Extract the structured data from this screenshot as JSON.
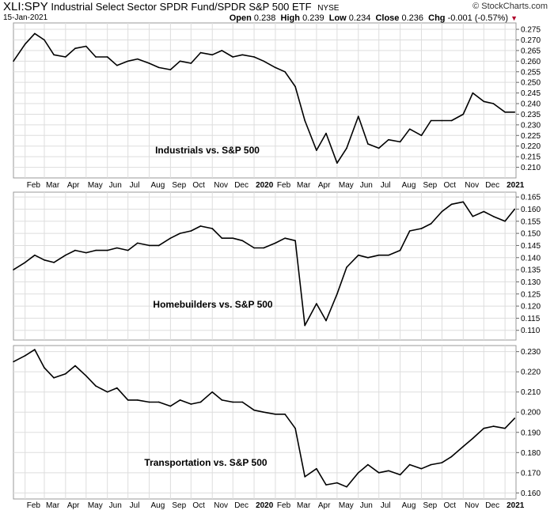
{
  "header": {
    "symbol": "XLI:SPY",
    "description": "Industrial Select Sector SPDR Fund/SPDR S&P 500 ETF",
    "exchange": "NYSE",
    "date": "15-Jan-2021",
    "brand": "© StockCharts.com",
    "open_label": "Open",
    "open": "0.238",
    "high_label": "High",
    "high": "0.239",
    "low_label": "Low",
    "low": "0.234",
    "close_label": "Close",
    "close": "0.236",
    "chg_label": "Chg",
    "chg": "-0.001 (-0.57%)",
    "down_arrow": "▼",
    "down_color": "#b0002a"
  },
  "x_axis": {
    "labels": [
      "Feb",
      "Mar",
      "Apr",
      "May",
      "Jun",
      "Jul",
      "Aug",
      "Sep",
      "Oct",
      "Nov",
      "Dec",
      "2020",
      "Feb",
      "Mar",
      "Apr",
      "May",
      "Jun",
      "Jul",
      "Aug",
      "Sep",
      "Oct",
      "Nov",
      "Dec",
      "2021"
    ],
    "bold_labels": [
      "2020",
      "2021"
    ]
  },
  "chart_data": [
    {
      "type": "line",
      "annotation": "Industrials vs. S&P 500",
      "ylim": [
        0.205,
        0.278
      ],
      "yticks": [
        "0.275",
        "0.270",
        "0.265",
        "0.260",
        "0.255",
        "0.250",
        "0.245",
        "0.240",
        "0.235",
        "0.230",
        "0.225",
        "0.220",
        "0.215",
        "0.210"
      ],
      "x": [
        "2019-01-15",
        "2019-02-01",
        "2019-02-15",
        "2019-03-01",
        "2019-03-15",
        "2019-04-01",
        "2019-04-15",
        "2019-05-01",
        "2019-05-15",
        "2019-06-01",
        "2019-06-15",
        "2019-07-01",
        "2019-07-15",
        "2019-08-01",
        "2019-08-15",
        "2019-09-01",
        "2019-09-15",
        "2019-10-01",
        "2019-10-15",
        "2019-11-01",
        "2019-11-15",
        "2019-12-01",
        "2019-12-15",
        "2020-01-01",
        "2020-01-15",
        "2020-02-01",
        "2020-02-15",
        "2020-03-01",
        "2020-03-15",
        "2020-04-01",
        "2020-04-15",
        "2020-05-01",
        "2020-05-15",
        "2020-06-01",
        "2020-06-15",
        "2020-07-01",
        "2020-07-15",
        "2020-08-01",
        "2020-08-15",
        "2020-09-01",
        "2020-09-15",
        "2020-10-01",
        "2020-10-15",
        "2020-11-01",
        "2020-11-15",
        "2020-12-01",
        "2020-12-15",
        "2021-01-01",
        "2021-01-15"
      ],
      "values": [
        0.26,
        0.268,
        0.273,
        0.27,
        0.263,
        0.262,
        0.266,
        0.267,
        0.262,
        0.262,
        0.258,
        0.26,
        0.261,
        0.259,
        0.257,
        0.256,
        0.26,
        0.259,
        0.264,
        0.263,
        0.265,
        0.262,
        0.263,
        0.262,
        0.26,
        0.257,
        0.255,
        0.248,
        0.232,
        0.218,
        0.226,
        0.212,
        0.219,
        0.234,
        0.221,
        0.219,
        0.223,
        0.222,
        0.228,
        0.225,
        0.232,
        0.232,
        0.232,
        0.235,
        0.245,
        0.241,
        0.24,
        0.236,
        0.236
      ]
    },
    {
      "type": "line",
      "annotation": "Homebuilders vs. S&P 500",
      "ylim": [
        0.106,
        0.167
      ],
      "yticks": [
        "0.165",
        "0.160",
        "0.155",
        "0.150",
        "0.145",
        "0.140",
        "0.135",
        "0.130",
        "0.125",
        "0.120",
        "0.115",
        "0.110"
      ],
      "x": [
        "2019-01-15",
        "2019-02-01",
        "2019-02-15",
        "2019-03-01",
        "2019-03-15",
        "2019-04-01",
        "2019-04-15",
        "2019-05-01",
        "2019-05-15",
        "2019-06-01",
        "2019-06-15",
        "2019-07-01",
        "2019-07-15",
        "2019-08-01",
        "2019-08-15",
        "2019-09-01",
        "2019-09-15",
        "2019-10-01",
        "2019-10-15",
        "2019-11-01",
        "2019-11-15",
        "2019-12-01",
        "2019-12-15",
        "2020-01-01",
        "2020-01-15",
        "2020-02-01",
        "2020-02-15",
        "2020-03-01",
        "2020-03-15",
        "2020-04-01",
        "2020-04-15",
        "2020-05-01",
        "2020-05-15",
        "2020-06-01",
        "2020-06-15",
        "2020-07-01",
        "2020-07-15",
        "2020-08-01",
        "2020-08-15",
        "2020-09-01",
        "2020-09-15",
        "2020-10-01",
        "2020-10-15",
        "2020-11-01",
        "2020-11-15",
        "2020-12-01",
        "2020-12-15",
        "2021-01-01",
        "2021-01-15"
      ],
      "values": [
        0.135,
        0.138,
        0.141,
        0.139,
        0.138,
        0.141,
        0.143,
        0.142,
        0.143,
        0.143,
        0.144,
        0.143,
        0.146,
        0.145,
        0.145,
        0.148,
        0.15,
        0.151,
        0.153,
        0.152,
        0.148,
        0.148,
        0.147,
        0.144,
        0.144,
        0.146,
        0.148,
        0.147,
        0.112,
        0.121,
        0.114,
        0.125,
        0.136,
        0.141,
        0.14,
        0.141,
        0.141,
        0.143,
        0.151,
        0.152,
        0.154,
        0.159,
        0.162,
        0.163,
        0.157,
        0.159,
        0.157,
        0.155,
        0.16
      ]
    },
    {
      "type": "line",
      "annotation": "Transportation vs. S&P 500",
      "ylim": [
        0.157,
        0.233
      ],
      "yticks": [
        "0.230",
        "0.220",
        "0.210",
        "0.200",
        "0.190",
        "0.180",
        "0.170",
        "0.160"
      ],
      "x": [
        "2019-01-15",
        "2019-02-01",
        "2019-02-15",
        "2019-03-01",
        "2019-03-15",
        "2019-04-01",
        "2019-04-15",
        "2019-05-01",
        "2019-05-15",
        "2019-06-01",
        "2019-06-15",
        "2019-07-01",
        "2019-07-15",
        "2019-08-01",
        "2019-08-15",
        "2019-09-01",
        "2019-09-15",
        "2019-10-01",
        "2019-10-15",
        "2019-11-01",
        "2019-11-15",
        "2019-12-01",
        "2019-12-15",
        "2020-01-01",
        "2020-01-15",
        "2020-02-01",
        "2020-02-15",
        "2020-03-01",
        "2020-03-15",
        "2020-04-01",
        "2020-04-15",
        "2020-05-01",
        "2020-05-15",
        "2020-06-01",
        "2020-06-15",
        "2020-07-01",
        "2020-07-15",
        "2020-08-01",
        "2020-08-15",
        "2020-09-01",
        "2020-09-15",
        "2020-10-01",
        "2020-10-15",
        "2020-11-01",
        "2020-11-15",
        "2020-12-01",
        "2020-12-15",
        "2021-01-01",
        "2021-01-15"
      ],
      "values": [
        0.225,
        0.228,
        0.231,
        0.222,
        0.217,
        0.219,
        0.223,
        0.218,
        0.213,
        0.21,
        0.212,
        0.206,
        0.206,
        0.205,
        0.205,
        0.203,
        0.206,
        0.204,
        0.205,
        0.21,
        0.206,
        0.205,
        0.205,
        0.201,
        0.2,
        0.199,
        0.199,
        0.192,
        0.168,
        0.172,
        0.164,
        0.165,
        0.163,
        0.17,
        0.174,
        0.17,
        0.171,
        0.169,
        0.174,
        0.172,
        0.174,
        0.175,
        0.178,
        0.183,
        0.187,
        0.192,
        0.193,
        0.192,
        0.197
      ]
    }
  ]
}
